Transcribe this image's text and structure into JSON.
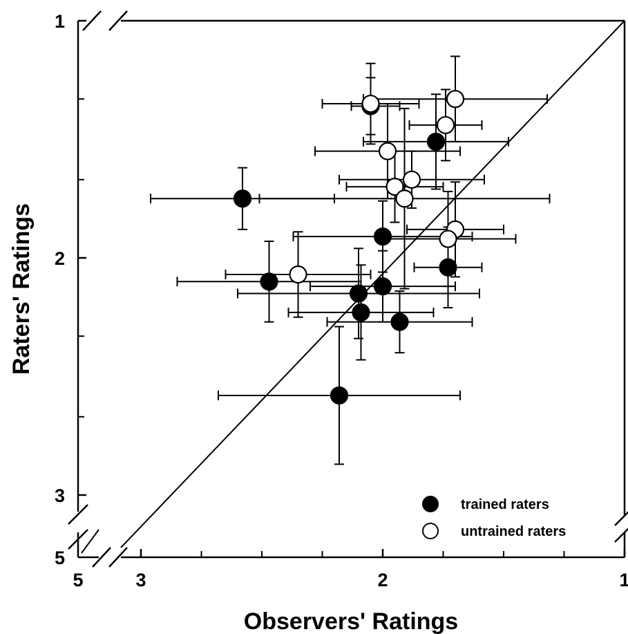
{
  "chart_data": {
    "type": "scatter",
    "xlabel": "Observers' Ratings",
    "ylabel": "Raters' Ratings",
    "x_axis": {
      "reversed": true,
      "broken": true,
      "break_value_label": "5",
      "range": [
        3,
        1
      ],
      "tick_labels": [
        "5",
        "3",
        "2",
        "1"
      ],
      "major_ticks": [
        3,
        2,
        1
      ],
      "minor_ticks": [
        2.75,
        2.5,
        2.25,
        1.75,
        1.5,
        1.25
      ]
    },
    "y_axis": {
      "reversed": true,
      "broken": true,
      "break_value_label": "5",
      "range": [
        1,
        3
      ],
      "tick_labels": [
        "1",
        "2",
        "3",
        "5"
      ],
      "major_ticks": [
        1,
        2,
        3
      ],
      "minor_ticks": [
        1.33,
        1.67,
        2.33,
        2.67
      ]
    },
    "reference_line": "identity",
    "legend": {
      "position": "bottom-right"
    },
    "series": [
      {
        "name": "trained raters",
        "marker": "filled-circle",
        "color": "#000000",
        "points": [
          {
            "x": 2.05,
            "y": 1.36,
            "xerr": [
              0.08,
              0.12
            ],
            "yerr": [
              0.12,
              0.12
            ]
          },
          {
            "x": 1.78,
            "y": 1.51,
            "xerr": [
              0.3,
              0.3
            ],
            "yerr": [
              0.2,
              0.2
            ]
          },
          {
            "x": 2.58,
            "y": 1.75,
            "xerr": [
              0.38,
              0.38
            ],
            "yerr": [
              0.13,
              0.13
            ]
          },
          {
            "x": 2.0,
            "y": 1.91,
            "xerr": [
              0.37,
              0.37
            ],
            "yerr": [
              0.15,
              0.15
            ]
          },
          {
            "x": 1.73,
            "y": 2.04,
            "xerr": [
              0.14,
              0.14
            ],
            "yerr": [
              0.17,
              0.17
            ]
          },
          {
            "x": 2.47,
            "y": 2.1,
            "xerr": [
              0.38,
              0.38
            ],
            "yerr": [
              0.17,
              0.17
            ]
          },
          {
            "x": 2.0,
            "y": 2.12,
            "xerr": [
              0.3,
              0.3
            ],
            "yerr": [
              0.15,
              0.15
            ]
          },
          {
            "x": 2.1,
            "y": 2.15,
            "xerr": [
              0.5,
              0.5
            ],
            "yerr": [
              0.19,
              0.19
            ]
          },
          {
            "x": 2.09,
            "y": 2.23,
            "xerr": [
              0.3,
              0.3
            ],
            "yerr": [
              0.2,
              0.2
            ]
          },
          {
            "x": 1.93,
            "y": 2.27,
            "xerr": [
              0.3,
              0.3
            ],
            "yerr": [
              0.13,
              0.13
            ]
          },
          {
            "x": 2.18,
            "y": 2.58,
            "xerr": [
              0.5,
              0.5
            ],
            "yerr": [
              0.29,
              0.29
            ]
          }
        ]
      },
      {
        "name": "untrained raters",
        "marker": "open-circle",
        "color": "#000000",
        "points": [
          {
            "x": 2.05,
            "y": 1.35,
            "xerr": [
              0.2,
              0.2
            ],
            "yerr": [
              0.17,
              0.17
            ]
          },
          {
            "x": 1.7,
            "y": 1.33,
            "xerr": [
              0.38,
              0.38
            ],
            "yerr": [
              0.18,
              0.18
            ]
          },
          {
            "x": 1.74,
            "y": 1.44,
            "xerr": [
              0.15,
              0.15
            ],
            "yerr": [
              0.15,
              0.15
            ]
          },
          {
            "x": 1.98,
            "y": 1.55,
            "xerr": [
              0.3,
              0.3
            ],
            "yerr": [
              0.2,
              0.2
            ]
          },
          {
            "x": 1.88,
            "y": 1.67,
            "xerr": [
              0.3,
              0.3
            ],
            "yerr": [
              0.12,
              0.12
            ]
          },
          {
            "x": 1.95,
            "y": 1.7,
            "xerr": [
              0.2,
              0.2
            ],
            "yerr": [
              0.15,
              0.15
            ]
          },
          {
            "x": 1.91,
            "y": 1.75,
            "xerr": [
              0.6,
              0.6
            ],
            "yerr": [
              0.38,
              0.38
            ]
          },
          {
            "x": 1.7,
            "y": 1.88,
            "xerr": [
              0.2,
              0.2
            ],
            "yerr": [
              0.2,
              0.2
            ]
          },
          {
            "x": 1.73,
            "y": 1.92,
            "xerr": [
              0.28,
              0.28
            ],
            "yerr": [
              0.2,
              0.2
            ]
          },
          {
            "x": 2.35,
            "y": 2.07,
            "xerr": [
              0.3,
              0.3
            ],
            "yerr": [
              0.18,
              0.18
            ]
          }
        ]
      }
    ]
  }
}
